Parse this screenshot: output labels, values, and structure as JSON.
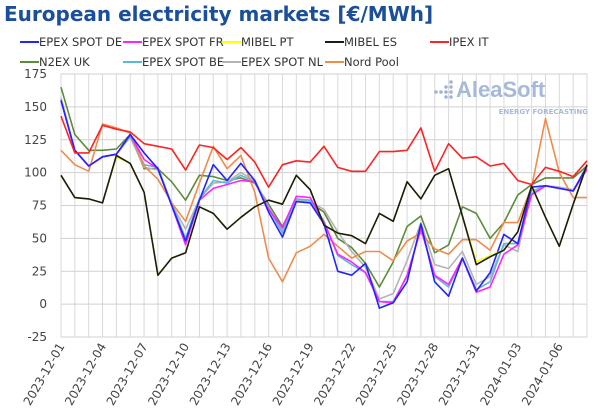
{
  "chart_data": {
    "type": "line",
    "title": "European electricity markets [€/MWh]",
    "xlabel": "",
    "ylabel": "",
    "ylim": [
      -25,
      175
    ],
    "yticks": [
      -25,
      0,
      25,
      50,
      75,
      100,
      125,
      150,
      175
    ],
    "x_start": "2023-12-01",
    "x_end": "2024-01-08",
    "xtick_labels": [
      "2023-12-01",
      "2023-12-04",
      "2023-12-07",
      "2023-12-10",
      "2023-12-13",
      "2023-12-16",
      "2023-12-19",
      "2023-12-22",
      "2023-12-25",
      "2023-12-28",
      "2023-12-31",
      "2024-01-03",
      "2024-01-06"
    ],
    "grid": true,
    "legend_position": "top",
    "watermark": "AleaSoft ENERGY FORECASTING",
    "series": [
      {
        "name": "EPEX SPOT DE",
        "color": "#2323ff",
        "values": [
          155,
          117,
          105,
          112,
          114,
          129,
          115,
          103,
          75,
          48,
          79,
          106,
          94,
          107,
          94,
          70,
          51,
          78,
          77,
          61,
          25,
          22,
          31,
          -3,
          1,
          17,
          61,
          17,
          6,
          35,
          10,
          24,
          53,
          46,
          89,
          90,
          88,
          86,
          105
        ]
      },
      {
        "name": "EPEX SPOT FR",
        "color": "#ff22ff",
        "values": [
          155,
          117,
          105,
          112,
          114,
          129,
          110,
          103,
          75,
          45,
          79,
          88,
          91,
          94,
          93,
          72,
          58,
          82,
          81,
          62,
          38,
          32,
          24,
          2,
          1,
          22,
          57,
          22,
          15,
          35,
          9,
          13,
          38,
          45,
          83,
          90,
          88,
          86,
          103
        ]
      },
      {
        "name": "MIBEL PT",
        "color": "#ffff00",
        "values": [
          98,
          81,
          80,
          77,
          112,
          107,
          85,
          22,
          35,
          39,
          74,
          69,
          57,
          66,
          74,
          79,
          76,
          98,
          87,
          60,
          54,
          52,
          46,
          69,
          63,
          93,
          80,
          98,
          103,
          67,
          32,
          37,
          41,
          55,
          90,
          66,
          44,
          76,
          106
        ]
      },
      {
        "name": "MIBEL ES",
        "color": "#1a1a1a",
        "values": [
          98,
          81,
          80,
          77,
          113,
          107,
          85,
          22,
          35,
          39,
          74,
          69,
          57,
          66,
          74,
          79,
          76,
          98,
          87,
          60,
          54,
          52,
          46,
          69,
          63,
          93,
          80,
          98,
          103,
          67,
          30,
          36,
          41,
          55,
          90,
          66,
          44,
          76,
          106
        ]
      },
      {
        "name": "IPEX IT",
        "color": "#ff2222",
        "values": [
          143,
          115,
          115,
          136,
          133,
          131,
          122,
          120,
          118,
          102,
          121,
          119,
          110,
          119,
          108,
          89,
          106,
          109,
          108,
          120,
          104,
          101,
          101,
          116,
          116,
          117,
          134,
          101,
          122,
          111,
          112,
          105,
          107,
          94,
          91,
          104,
          101,
          97,
          109
        ]
      },
      {
        "name": "N2EX UK",
        "color": "#5b8c3a",
        "values": [
          165,
          129,
          117,
          117,
          118,
          129,
          103,
          103,
          93,
          79,
          98,
          97,
          94,
          96,
          92,
          76,
          59,
          80,
          77,
          70,
          50,
          43,
          31,
          13,
          32,
          59,
          67,
          39,
          45,
          74,
          69,
          50,
          62,
          83,
          91,
          96,
          96,
          96,
          105
        ]
      },
      {
        "name": "EPEX SPOT BE",
        "color": "#5ab9d3",
        "values": [
          155,
          117,
          105,
          112,
          114,
          128,
          106,
          104,
          76,
          50,
          80,
          94,
          92,
          98,
          93,
          73,
          54,
          80,
          79,
          63,
          37,
          30,
          24,
          2,
          2,
          21,
          58,
          21,
          13,
          35,
          11,
          17,
          46,
          46,
          84,
          90,
          88,
          86,
          103
        ]
      },
      {
        "name": "EPEX SPOT NL",
        "color": "#b4b4b4",
        "values": [
          157,
          117,
          105,
          112,
          114,
          127,
          104,
          102,
          76,
          57,
          80,
          92,
          93,
          100,
          94,
          74,
          56,
          79,
          78,
          72,
          55,
          40,
          28,
          4,
          8,
          33,
          62,
          30,
          27,
          40,
          15,
          21,
          45,
          40,
          86,
          90,
          89,
          87,
          102
        ]
      },
      {
        "name": "Nord Pool",
        "color": "#f08b4b",
        "values": [
          117,
          106,
          101,
          137,
          134,
          130,
          105,
          95,
          77,
          63,
          92,
          120,
          103,
          113,
          85,
          35,
          17,
          39,
          44,
          53,
          44,
          35,
          40,
          40,
          33,
          48,
          54,
          42,
          38,
          49,
          49,
          41,
          62,
          62,
          89,
          141,
          100,
          81,
          81
        ]
      }
    ]
  }
}
